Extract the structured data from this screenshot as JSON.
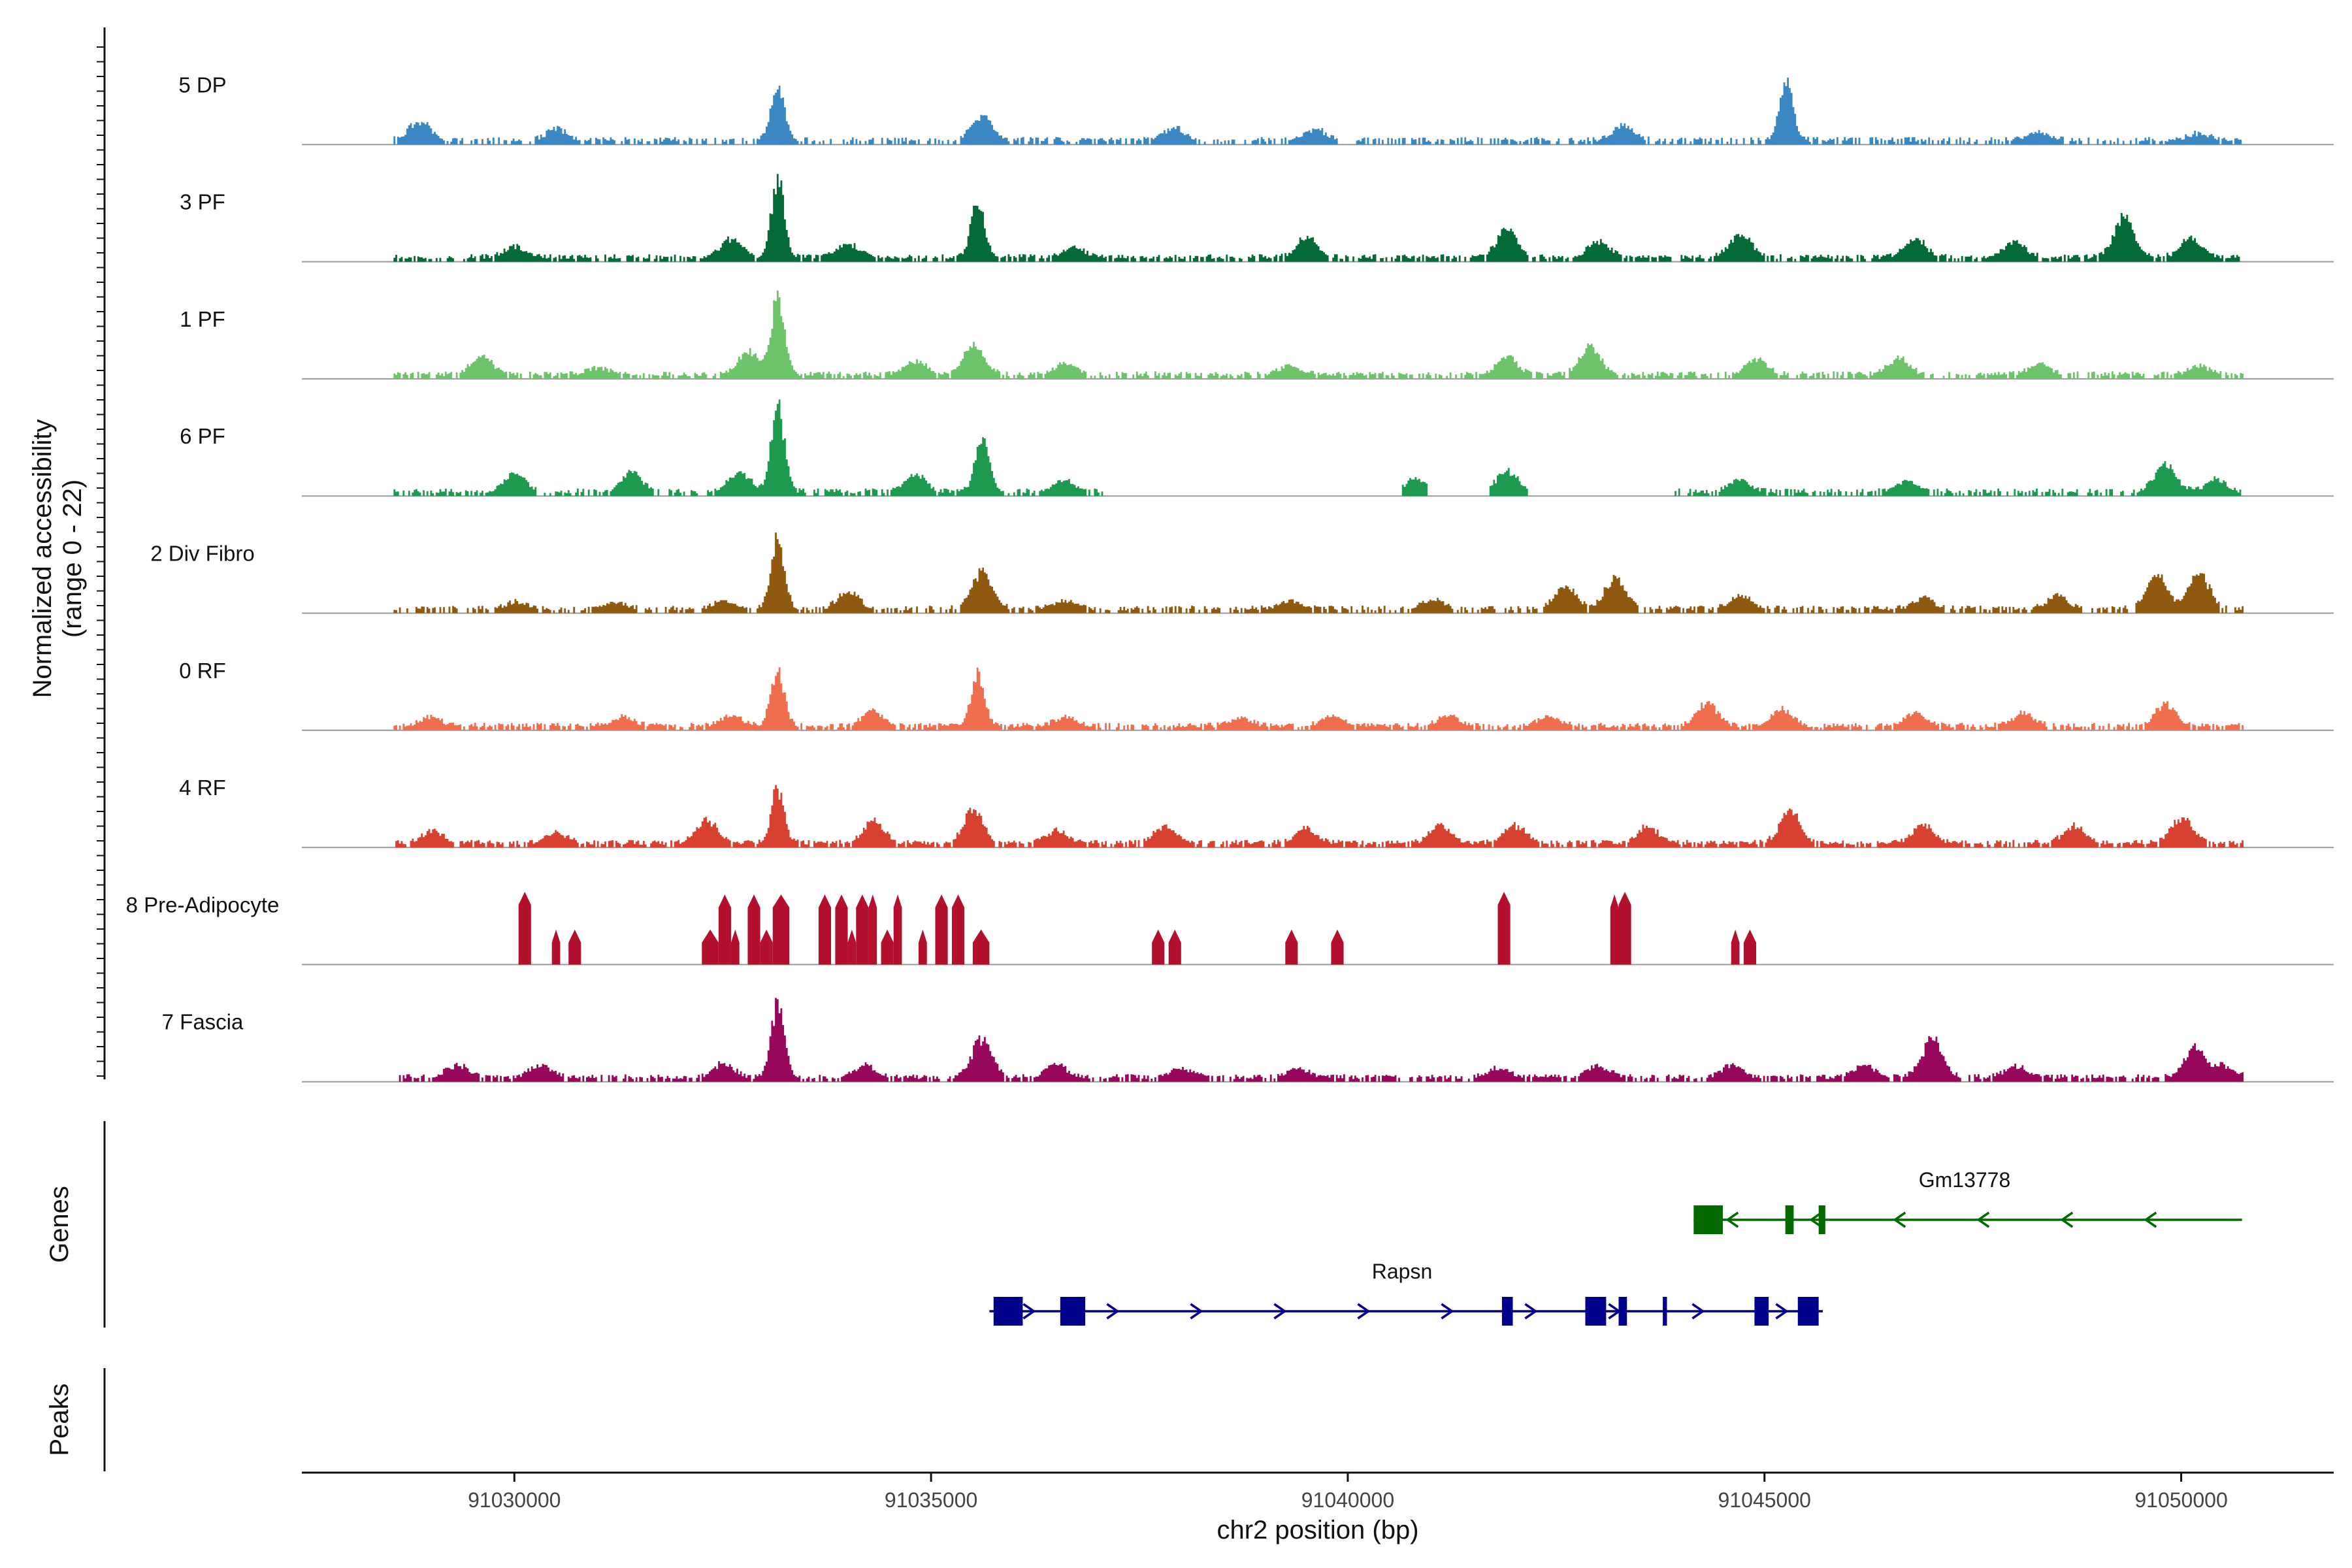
{
  "chart_data": {
    "type": "coverage",
    "title": "",
    "ylabel_line1": "Normalized accessibility",
    "ylabel_line2": "(range 0 - 22)",
    "yrange": [
      0,
      22
    ],
    "xlabel": "chr2 position (bp)",
    "xlim": [
      91027450,
      91051830
    ],
    "xticks": [
      91030000,
      91035000,
      91040000,
      91045000,
      91050000
    ],
    "xtick_labels": [
      "91030000",
      "91035000",
      "91040000",
      "91045000",
      "91050000"
    ],
    "panel_titles": {
      "genes": "Genes",
      "peaks": "Peaks"
    },
    "coverage_start": 91028550,
    "coverage_end": 91050740,
    "tracks": [
      {
        "name": "5 DP",
        "color": "#3A87C2",
        "sparsity": 0.48,
        "peaks": [
          [
            91028850,
            3.5
          ],
          [
            91030500,
            2.0
          ],
          [
            91033150,
            10.5
          ],
          [
            91035600,
            4.5
          ],
          [
            91037900,
            2.2
          ],
          [
            91039600,
            2.0
          ],
          [
            91043300,
            2.6
          ],
          [
            91045250,
            11.2
          ],
          [
            91048300,
            1.4
          ],
          [
            91050200,
            1.2
          ]
        ]
      },
      {
        "name": "3 PF",
        "color": "#046A37",
        "sparsity": 0.28,
        "peaks": [
          [
            91030000,
            2.0
          ],
          [
            91032600,
            3.5
          ],
          [
            91033150,
            14.5
          ],
          [
            91034000,
            2.5
          ],
          [
            91035550,
            11.0
          ],
          [
            91036700,
            1.8
          ],
          [
            91039500,
            3.8
          ],
          [
            91041900,
            5.6
          ],
          [
            91043000,
            3.0
          ],
          [
            91044700,
            4.5
          ],
          [
            91046800,
            3.5
          ],
          [
            91048000,
            3.0
          ],
          [
            91049300,
            7.5
          ],
          [
            91050100,
            3.5
          ]
        ]
      },
      {
        "name": "1 PF",
        "color": "#6CC36A",
        "sparsity": 0.33,
        "peaks": [
          [
            91029600,
            3.5
          ],
          [
            91031000,
            1.2
          ],
          [
            91032800,
            4.0
          ],
          [
            91033150,
            14.5
          ],
          [
            91034800,
            2.5
          ],
          [
            91035500,
            5.6
          ],
          [
            91036600,
            2.0
          ],
          [
            91039300,
            1.6
          ],
          [
            91041900,
            3.2
          ],
          [
            91042900,
            5.2
          ],
          [
            91044900,
            2.5
          ],
          [
            91046600,
            3.0
          ],
          [
            91048300,
            2.0
          ],
          [
            91050200,
            1.5
          ]
        ]
      },
      {
        "name": "6 PF",
        "color": "#1E9950",
        "sparsity": 0.4,
        "ranges": [
          [
            91028550,
            91037150
          ],
          [
            91040650,
            91040950
          ],
          [
            91041700,
            91042150
          ],
          [
            91043900,
            91050740
          ]
        ],
        "peaks": [
          [
            91030000,
            3.5
          ],
          [
            91031400,
            3.5
          ],
          [
            91032700,
            3.8
          ],
          [
            91033150,
            16.5
          ],
          [
            91034800,
            3.0
          ],
          [
            91035600,
            10.5
          ],
          [
            91036600,
            2.0
          ],
          [
            91040800,
            2.2
          ],
          [
            91041900,
            3.8
          ],
          [
            91044700,
            2.2
          ],
          [
            91046700,
            2.0
          ],
          [
            91049800,
            5.4
          ],
          [
            91050400,
            2.2
          ]
        ]
      },
      {
        "name": "2 Div Fibro",
        "color": "#8F5A10",
        "sparsity": 0.42,
        "peaks": [
          [
            91030000,
            1.2
          ],
          [
            91031200,
            1.0
          ],
          [
            91032500,
            1.3
          ],
          [
            91033150,
            12.8
          ],
          [
            91034000,
            3.2
          ],
          [
            91035600,
            6.8
          ],
          [
            91036600,
            1.6
          ],
          [
            91039300,
            1.4
          ],
          [
            91041000,
            1.6
          ],
          [
            91042600,
            4.2
          ],
          [
            91043200,
            5.6
          ],
          [
            91044700,
            2.4
          ],
          [
            91046900,
            2.0
          ],
          [
            91048500,
            2.4
          ],
          [
            91049700,
            6.2
          ],
          [
            91050200,
            6.6
          ]
        ]
      },
      {
        "name": "0 RF",
        "color": "#EE6E4E",
        "sparsity": 0.25,
        "peaks": [
          [
            91029000,
            1.5
          ],
          [
            91031300,
            1.5
          ],
          [
            91032600,
            1.8
          ],
          [
            91033150,
            10.8
          ],
          [
            91034300,
            2.8
          ],
          [
            91035550,
            10.0
          ],
          [
            91036600,
            1.6
          ],
          [
            91038700,
            1.4
          ],
          [
            91039800,
            1.8
          ],
          [
            91041200,
            1.8
          ],
          [
            91042400,
            1.8
          ],
          [
            91044300,
            4.2
          ],
          [
            91045200,
            3.0
          ],
          [
            91046800,
            2.2
          ],
          [
            91048100,
            2.2
          ],
          [
            91049800,
            4.2
          ]
        ]
      },
      {
        "name": "4 RF",
        "color": "#D6422F",
        "sparsity": 0.22,
        "peaks": [
          [
            91029000,
            2.2
          ],
          [
            91030500,
            2.0
          ],
          [
            91032300,
            4.2
          ],
          [
            91033150,
            10.2
          ],
          [
            91034300,
            4.2
          ],
          [
            91035500,
            6.0
          ],
          [
            91036500,
            2.2
          ],
          [
            91037800,
            3.2
          ],
          [
            91039500,
            2.8
          ],
          [
            91041100,
            3.2
          ],
          [
            91042000,
            3.2
          ],
          [
            91043600,
            3.0
          ],
          [
            91045300,
            6.0
          ],
          [
            91046900,
            3.5
          ],
          [
            91048700,
            3.2
          ],
          [
            91050000,
            4.8
          ]
        ]
      },
      {
        "name": "8 Pre-Adipocyte",
        "color": "#B2102D",
        "sparsity": 0.0,
        "blocks": [
          [
            91030050,
            91030200,
            13.5
          ],
          [
            91030450,
            91030550,
            6.5
          ],
          [
            91030650,
            91030800,
            6.5
          ],
          [
            91032250,
            91032450,
            6.5
          ],
          [
            91032450,
            91032600,
            13.0
          ],
          [
            91032600,
            91032700,
            6.5
          ],
          [
            91032800,
            91032950,
            13.0
          ],
          [
            91032950,
            91033100,
            6.5
          ],
          [
            91033100,
            91033300,
            13.0
          ],
          [
            91033650,
            91033800,
            13.0
          ],
          [
            91033850,
            91034000,
            13.0
          ],
          [
            91034000,
            91034100,
            6.5
          ],
          [
            91034100,
            91034250,
            13.0
          ],
          [
            91034250,
            91034350,
            13.0
          ],
          [
            91034400,
            91034550,
            6.5
          ],
          [
            91034550,
            91034650,
            13.0
          ],
          [
            91034850,
            91034950,
            6.5
          ],
          [
            91035050,
            91035200,
            13.0
          ],
          [
            91035250,
            91035400,
            13.0
          ],
          [
            91035500,
            91035700,
            6.5
          ],
          [
            91037650,
            91037800,
            6.5
          ],
          [
            91037850,
            91038000,
            6.5
          ],
          [
            91039250,
            91039400,
            6.5
          ],
          [
            91039800,
            91039950,
            6.5
          ],
          [
            91041800,
            91041950,
            13.5
          ],
          [
            91043150,
            91043250,
            13.0
          ],
          [
            91043250,
            91043400,
            13.5
          ],
          [
            91044600,
            91044700,
            6.5
          ],
          [
            91044750,
            91044900,
            6.5
          ]
        ]
      },
      {
        "name": "7 Fascia",
        "color": "#97075C",
        "sparsity": 0.3,
        "peaks": [
          [
            91029300,
            2.2
          ],
          [
            91030300,
            2.2
          ],
          [
            91032500,
            2.5
          ],
          [
            91033150,
            13.8
          ],
          [
            91034200,
            2.2
          ],
          [
            91035600,
            7.0
          ],
          [
            91036500,
            2.2
          ],
          [
            91038000,
            1.6
          ],
          [
            91039400,
            1.6
          ],
          [
            91041800,
            1.6
          ],
          [
            91043000,
            2.2
          ],
          [
            91044600,
            2.2
          ],
          [
            91046200,
            2.2
          ],
          [
            91047000,
            7.2
          ],
          [
            91048000,
            2.0
          ],
          [
            91050150,
            5.4
          ],
          [
            91050500,
            2.2
          ]
        ]
      }
    ],
    "genes": [
      {
        "name": "Gm13778",
        "color": "#046A00",
        "strand": "-",
        "start": 91044150,
        "end": 91050730,
        "exons": [
          [
            91044150,
            91044500
          ],
          [
            91045250,
            91045350
          ],
          [
            91045650,
            91045730
          ]
        ]
      },
      {
        "name": "Rapsn",
        "color": "#00008B",
        "strand": "+",
        "start": 91035700,
        "end": 91045700,
        "exons": [
          [
            91035750,
            91036100
          ],
          [
            91036550,
            91036850
          ],
          [
            91041850,
            91041980
          ],
          [
            91042850,
            91043100
          ],
          [
            91043250,
            91043350
          ],
          [
            91043780,
            91043830
          ],
          [
            91044880,
            91045050
          ],
          [
            91045400,
            91045650
          ]
        ]
      }
    ],
    "peaks_track": []
  }
}
